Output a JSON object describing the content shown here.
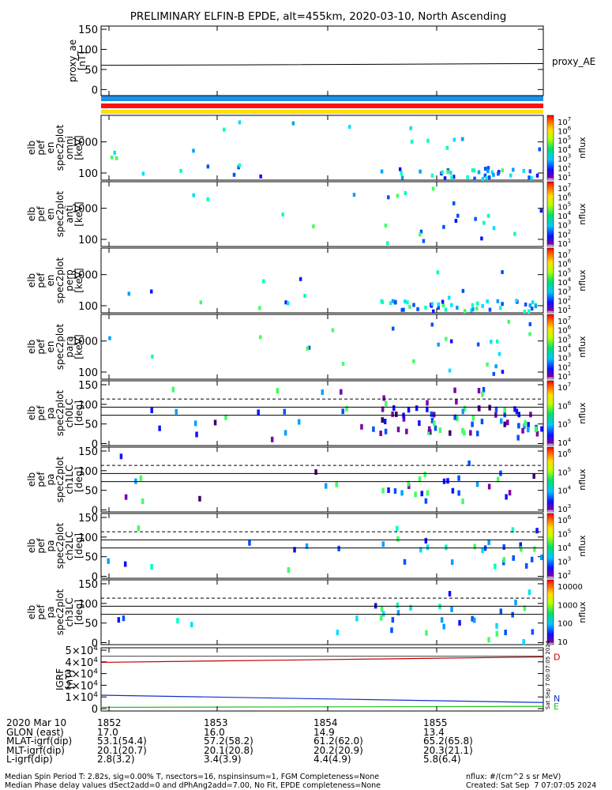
{
  "title": "PRELIMINARY ELFIN-B EPDE, alt=455km, 2020-03-10, North Ascending",
  "colors": {
    "strip_blue": "#1f8fe8",
    "strip_red": "#ff1010",
    "strip_yellow": "#ffe000",
    "igrf_red": "#c00000",
    "igrf_blue": "#1030d0",
    "igrf_green": "#20c020"
  },
  "panels": [
    {
      "id": "proxy_ae",
      "ylabel": [
        "proxy_ae",
        "[nT]"
      ],
      "right_label": "proxy_AE",
      "yticks": [
        "150",
        "100",
        "50",
        "0"
      ]
    },
    {
      "id": "omni",
      "ylabel": [
        "elb",
        "pef",
        "en",
        "spec2plot",
        "omni",
        "[keV]"
      ],
      "yticks": [
        "1000",
        "100"
      ],
      "cbar_label": "nflux",
      "cbar_ticks": [
        "10^7",
        "10^6",
        "10^5",
        "10^4",
        "10^3",
        "10^2",
        "10^1"
      ]
    },
    {
      "id": "anti",
      "ylabel": [
        "elb",
        "pef",
        "en",
        "spec2plot",
        "anti",
        "[keV]"
      ],
      "yticks": [
        "1000",
        "100"
      ],
      "cbar_label": "nflux",
      "cbar_ticks": [
        "10^7",
        "10^6",
        "10^5",
        "10^4",
        "10^3",
        "10^2",
        "10^1"
      ]
    },
    {
      "id": "perp",
      "ylabel": [
        "elb",
        "pef",
        "en",
        "spec2plot",
        "perp",
        "[keV]"
      ],
      "yticks": [
        "1000",
        "100"
      ],
      "cbar_label": "nflux",
      "cbar_ticks": [
        "10^7",
        "10^6",
        "10^5",
        "10^4",
        "10^3",
        "10^2",
        "10^1"
      ]
    },
    {
      "id": "para",
      "ylabel": [
        "elb",
        "pef",
        "en",
        "spec2plot",
        "para",
        "[keV]"
      ],
      "yticks": [
        "1000",
        "100"
      ],
      "cbar_label": "nflux",
      "cbar_ticks": [
        "10^7",
        "10^6",
        "10^5",
        "10^4",
        "10^3",
        "10^2",
        "10^1"
      ]
    },
    {
      "id": "ch0LC",
      "ylabel": [
        "elb",
        "pef",
        "pa",
        "spec2plot",
        "ch0LC",
        "[deg]"
      ],
      "yticks": [
        "150",
        "100",
        "50",
        "0"
      ],
      "cbar_label": "nflux",
      "cbar_ticks": [
        "10^7",
        "10^6",
        "10^5",
        "10^4"
      ]
    },
    {
      "id": "ch1LC",
      "ylabel": [
        "elb",
        "pef",
        "pa",
        "spec2plot",
        "ch1LC",
        "[deg]"
      ],
      "yticks": [
        "150",
        "100",
        "50",
        "0"
      ],
      "cbar_label": "nflux",
      "cbar_ticks": [
        "10^6",
        "10^5",
        "10^4",
        "10^3"
      ]
    },
    {
      "id": "ch2LC",
      "ylabel": [
        "elb",
        "pef",
        "pa",
        "spec2plot",
        "ch2LC",
        "[deg]"
      ],
      "yticks": [
        "150",
        "100",
        "50",
        "0"
      ],
      "cbar_label": "nflux",
      "cbar_ticks": [
        "10^6",
        "10^5",
        "10^4",
        "10^3",
        "10^2"
      ]
    },
    {
      "id": "ch3LC",
      "ylabel": [
        "elb",
        "pef",
        "pa",
        "spec2plot",
        "ch3LC",
        "[deg]"
      ],
      "yticks": [
        "150",
        "100",
        "50",
        "0"
      ],
      "cbar_label": "nflux",
      "cbar_ticks": [
        "10000",
        "1000",
        "100",
        "10"
      ]
    },
    {
      "id": "igrf",
      "ylabel": [
        "IGRF",
        "[nT]"
      ],
      "yticks": [
        "5×10^4",
        "4×10^4",
        "3×10^4",
        "2×10^4",
        "1×10^4",
        "0"
      ],
      "side_labels": [
        "D",
        "N",
        "E"
      ],
      "vertical_note": "Sat Sep 7 00:07:05 2024"
    }
  ],
  "xaxis": {
    "rows": [
      [
        "2020 Mar 10",
        "1852",
        "1853",
        "1854",
        "1855"
      ],
      [
        "GLON (east)",
        "17.0",
        "16.0",
        "14.9",
        "13.4"
      ],
      [
        "MLAT-igrf(dip)",
        "53.1(54.4)",
        "57.2(58.2)",
        "61.2(62.0)",
        "65.2(65.8)"
      ],
      [
        "MLT-igrf(dip)",
        "20.1(20.7)",
        "20.1(20.8)",
        "20.2(20.9)",
        "20.3(21.1)"
      ],
      [
        "L-igrf(dip)",
        "2.8(3.2)",
        "3.4(3.9)",
        "4.4(4.9)",
        "5.8(6.4)"
      ]
    ]
  },
  "footer": {
    "left1": "Median Spin Period T: 2.82s, sig=0.00% T, nsectors=16, nspinsinsum=1, FGM Completeness=None",
    "left2": "Median Phase delay values dSect2add=0 and dPhAng2add=7.00, No Fit, EPDE completeness=None",
    "right1": "nflux: #/(cm^2 s sr MeV)",
    "right2": "Created: Sat Sep  7 07:07:05 2024"
  },
  "chart_data": {
    "type": "heatmap",
    "x_start_time": "18:51:40",
    "x_end_time": "18:56:00",
    "proxy_ae": {
      "ylim": [
        -10,
        155
      ],
      "x": [
        "18:51:40",
        "18:53:00",
        "18:56:00"
      ],
      "values": [
        62,
        63,
        66
      ]
    },
    "energy_ylim_keV": [
      60,
      5000
    ],
    "pa_ylim_deg": [
      -5,
      155
    ],
    "pa_reference_lines_deg": {
      "dashed": 110,
      "solid": [
        90,
        70
      ]
    },
    "igrf": {
      "ylim": [
        0,
        52000
      ],
      "series": [
        {
          "name": "D",
          "values_start_end": [
            40000,
            44500
          ]
        },
        {
          "name": "N",
          "values_start_end": [
            13000,
            7000
          ]
        },
        {
          "name": "E",
          "values_start_end": [
            3000,
            3800
          ]
        }
      ]
    }
  }
}
